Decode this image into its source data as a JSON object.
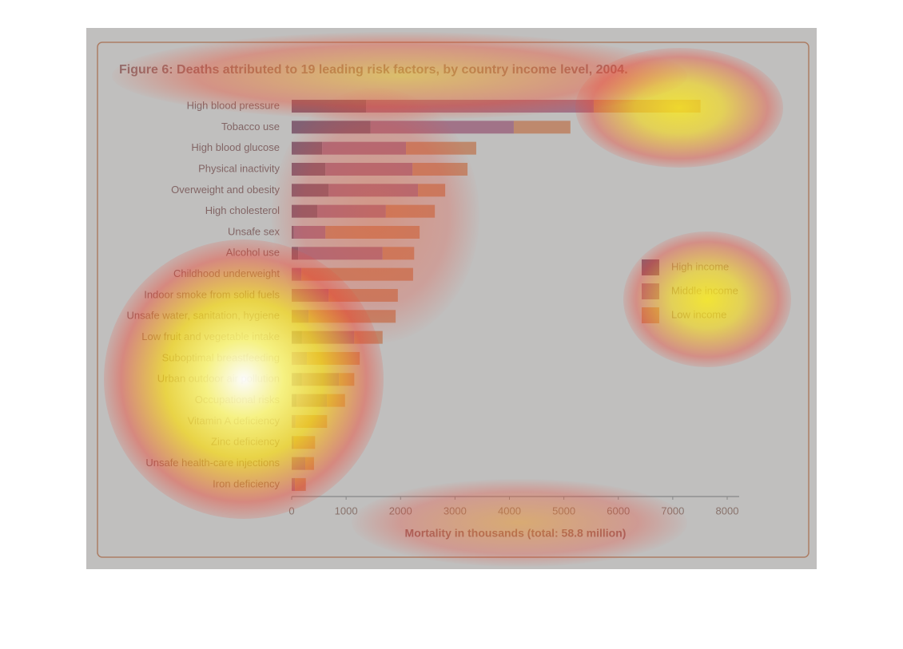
{
  "chart_data": {
    "type": "bar",
    "orientation": "horizontal",
    "stacked": true,
    "title": "Figure 6: Deaths attributed to 19 leading risk factors, by country income level, 2004.",
    "xlabel": "Mortality in thousands (total: 58.8 million)",
    "categories": [
      "High blood pressure",
      "Tobacco use",
      "High blood glucose",
      "Physical inactivity",
      "Overweight and obesity",
      "High cholesterol",
      "Unsafe sex",
      "Alcohol use",
      "Childhood underweight",
      "Indoor smoke from solid fuels",
      "Unsafe water, sanitation, hygiene",
      "Low fruit and vegetable intake",
      "Suboptimal breastfeeding",
      "Urban outdoor air pollution",
      "Occupational risks",
      "Vitamin A deficiency",
      "Zinc deficiency",
      "Unsafe health-care injections",
      "Iron deficiency"
    ],
    "series": [
      {
        "name": "High income",
        "color": "#6b1f4a",
        "values": [
          1370,
          1450,
          560,
          620,
          680,
          470,
          40,
          120,
          0,
          0,
          0,
          190,
          0,
          190,
          90,
          0,
          0,
          0,
          0
        ]
      },
      {
        "name": "Middle income",
        "color": "#b04a78",
        "values": [
          4180,
          2630,
          1540,
          1600,
          1640,
          1260,
          580,
          1550,
          180,
          680,
          310,
          960,
          280,
          680,
          560,
          70,
          40,
          250,
          60
        ]
      },
      {
        "name": "Low income",
        "color": "#f07a3c",
        "values": [
          1960,
          1040,
          1290,
          1010,
          500,
          900,
          1730,
          580,
          2050,
          1270,
          1600,
          520,
          970,
          280,
          330,
          580,
          390,
          160,
          200
        ]
      }
    ],
    "xlim": [
      0,
      8000
    ],
    "xticks": [
      0,
      1000,
      2000,
      3000,
      4000,
      5000,
      6000,
      7000,
      8000
    ],
    "legend": "right"
  }
}
